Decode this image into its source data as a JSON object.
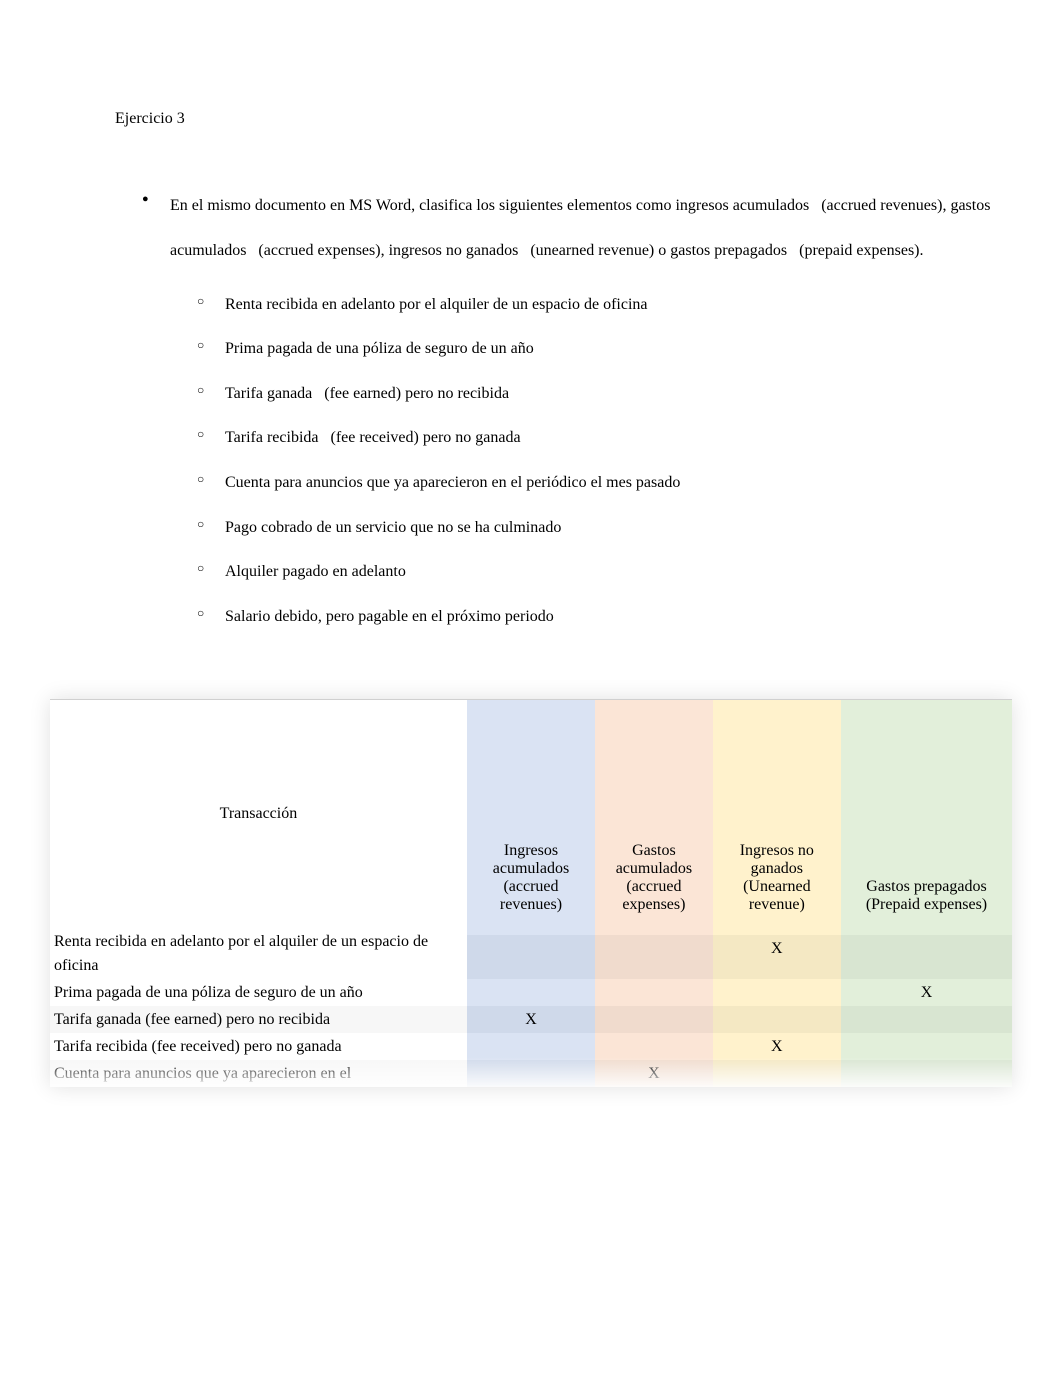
{
  "title": "Ejercicio 3",
  "instruction": "En el mismo documento en MS Word, clasifica los siguientes elementos como ingresos acumulados   (accrued revenues), gastos acumulados   (accrued expenses), ingresos no ganados   (unearned revenue) o gastos prepagados   (prepaid expenses).",
  "items": [
    "Renta recibida en adelanto por el alquiler de un espacio de oficina",
    "Prima pagada de una póliza de seguro de un año",
    "Tarifa ganada   (fee earned) pero no recibida",
    "Tarifa recibida   (fee received) pero no ganada",
    "Cuenta para anuncios que ya aparecieron en el periódico el mes pasado",
    "Pago cobrado de un servicio que no se ha culminado",
    "Alquiler pagado en adelanto",
    "Salario debido, pero pagable en el próximo periodo"
  ],
  "table": {
    "columns": [
      {
        "label": "Transacción",
        "bg": "#ffffff"
      },
      {
        "label": "Ingresos acumulados (accrued revenues)",
        "bg": "#dae3f3"
      },
      {
        "label": "Gastos acumulados (accrued expenses)",
        "bg": "#fbe5d6"
      },
      {
        "label": "Ingresos no ganados (Unearned revenue)",
        "bg": "#fff2cc"
      },
      {
        "label": "Gastos prepagados (Prepaid expenses)",
        "bg": "#e2efda"
      }
    ],
    "header_fontsize": 16,
    "rows": [
      {
        "transaction": "Renta recibida en adelanto por el alquiler de un espacio de oficina",
        "marks": [
          "",
          "",
          "",
          "X",
          ""
        ]
      },
      {
        "transaction": "Prima pagada de una póliza de seguro de un año",
        "marks": [
          "",
          "",
          "",
          "",
          "X"
        ]
      },
      {
        "transaction": "Tarifa ganada (fee earned) pero no recibida",
        "marks": [
          "",
          "X",
          "",
          "",
          ""
        ]
      },
      {
        "transaction": "Tarifa recibida (fee received) pero no ganada",
        "marks": [
          "",
          "",
          "",
          "X",
          ""
        ]
      },
      {
        "transaction": "Cuenta para anuncios que ya aparecieron en el",
        "marks": [
          "",
          "",
          "X",
          "",
          ""
        ]
      }
    ],
    "mark_symbol": "X",
    "colors": {
      "col1_bg": "#dae3f3",
      "col2_bg": "#fbe5d6",
      "col3_bg": "#fff2cc",
      "col4_bg": "#e2efda",
      "shade_overlay": "#f2f2f2",
      "text": "#000000",
      "shadow": "rgba(0,0,0,0.12)"
    }
  }
}
